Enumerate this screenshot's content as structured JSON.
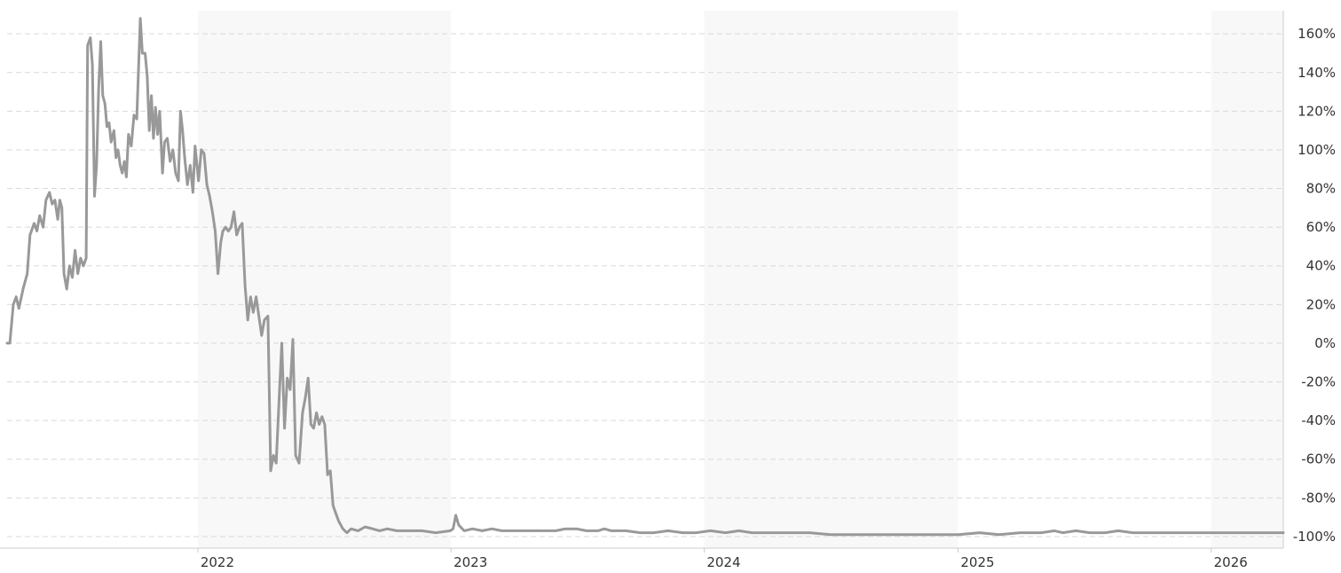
{
  "chart_data": {
    "type": "line",
    "title": "",
    "xlabel": "",
    "ylabel": "",
    "x_tick_labels": [
      "2022",
      "2023",
      "2024",
      "2025",
      "2026"
    ],
    "y_tick_labels": [
      "160%",
      "140%",
      "120%",
      "100%",
      "80%",
      "60%",
      "40%",
      "20%",
      "0%",
      "-20%",
      "-40%",
      "-60%",
      "-80%",
      "-100%"
    ],
    "y_ticks": [
      160,
      140,
      120,
      100,
      80,
      60,
      40,
      20,
      0,
      -20,
      -40,
      -60,
      -80,
      -100
    ],
    "ylim": [
      -106,
      172
    ],
    "xlim": [
      "2021-04-01",
      "2026-04-15"
    ],
    "grid": true,
    "shaded_year_bands": [
      [
        "2022-01-01",
        "2023-01-01"
      ],
      [
        "2024-01-01",
        "2025-01-01"
      ],
      [
        "2026-01-01",
        "2026-04-15"
      ]
    ],
    "colors": {
      "line": "#999999",
      "band": "#f8f8f8",
      "grid": "#d9d9d9",
      "axis": "#cccccc",
      "text": "#333333"
    },
    "series": [
      {
        "name": "",
        "points": [
          [
            "2021-04-01",
            0
          ],
          [
            "2021-04-05",
            0
          ],
          [
            "2021-04-10",
            20
          ],
          [
            "2021-04-14",
            24
          ],
          [
            "2021-04-18",
            18
          ],
          [
            "2021-04-24",
            28
          ],
          [
            "2021-04-30",
            36
          ],
          [
            "2021-05-04",
            56
          ],
          [
            "2021-05-10",
            62
          ],
          [
            "2021-05-14",
            58
          ],
          [
            "2021-05-18",
            66
          ],
          [
            "2021-05-23",
            60
          ],
          [
            "2021-05-27",
            74
          ],
          [
            "2021-06-01",
            78
          ],
          [
            "2021-06-05",
            72
          ],
          [
            "2021-06-09",
            74
          ],
          [
            "2021-06-13",
            64
          ],
          [
            "2021-06-16",
            74
          ],
          [
            "2021-06-19",
            70
          ],
          [
            "2021-06-22",
            36
          ],
          [
            "2021-06-26",
            28
          ],
          [
            "2021-06-30",
            40
          ],
          [
            "2021-07-04",
            34
          ],
          [
            "2021-07-08",
            48
          ],
          [
            "2021-07-12",
            36
          ],
          [
            "2021-07-16",
            44
          ],
          [
            "2021-07-20",
            40
          ],
          [
            "2021-07-24",
            44
          ],
          [
            "2021-07-26",
            154
          ],
          [
            "2021-07-30",
            158
          ],
          [
            "2021-08-02",
            144
          ],
          [
            "2021-08-05",
            76
          ],
          [
            "2021-08-08",
            92
          ],
          [
            "2021-08-11",
            132
          ],
          [
            "2021-08-14",
            156
          ],
          [
            "2021-08-17",
            128
          ],
          [
            "2021-08-20",
            124
          ],
          [
            "2021-08-23",
            112
          ],
          [
            "2021-08-26",
            114
          ],
          [
            "2021-08-29",
            104
          ],
          [
            "2021-09-02",
            110
          ],
          [
            "2021-09-05",
            96
          ],
          [
            "2021-09-08",
            100
          ],
          [
            "2021-09-11",
            92
          ],
          [
            "2021-09-14",
            88
          ],
          [
            "2021-09-17",
            94
          ],
          [
            "2021-09-20",
            86
          ],
          [
            "2021-09-23",
            108
          ],
          [
            "2021-09-27",
            102
          ],
          [
            "2021-10-01",
            118
          ],
          [
            "2021-10-05",
            116
          ],
          [
            "2021-10-10",
            168
          ],
          [
            "2021-10-13",
            150
          ],
          [
            "2021-10-17",
            150
          ],
          [
            "2021-10-20",
            138
          ],
          [
            "2021-10-23",
            110
          ],
          [
            "2021-10-26",
            128
          ],
          [
            "2021-10-29",
            106
          ],
          [
            "2021-11-01",
            122
          ],
          [
            "2021-11-04",
            108
          ],
          [
            "2021-11-07",
            120
          ],
          [
            "2021-11-11",
            88
          ],
          [
            "2021-11-14",
            104
          ],
          [
            "2021-11-18",
            106
          ],
          [
            "2021-11-22",
            94
          ],
          [
            "2021-11-26",
            100
          ],
          [
            "2021-11-30",
            88
          ],
          [
            "2021-12-04",
            84
          ],
          [
            "2021-12-07",
            120
          ],
          [
            "2021-12-10",
            110
          ],
          [
            "2021-12-13",
            96
          ],
          [
            "2021-12-17",
            82
          ],
          [
            "2021-12-21",
            92
          ],
          [
            "2021-12-25",
            78
          ],
          [
            "2021-12-28",
            102
          ],
          [
            "2022-01-02",
            84
          ],
          [
            "2022-01-06",
            100
          ],
          [
            "2022-01-10",
            98
          ],
          [
            "2022-01-14",
            82
          ],
          [
            "2022-01-18",
            76
          ],
          [
            "2022-01-22",
            68
          ],
          [
            "2022-01-26",
            58
          ],
          [
            "2022-01-30",
            36
          ],
          [
            "2022-02-03",
            52
          ],
          [
            "2022-02-06",
            58
          ],
          [
            "2022-02-10",
            60
          ],
          [
            "2022-02-14",
            58
          ],
          [
            "2022-02-18",
            60
          ],
          [
            "2022-02-22",
            68
          ],
          [
            "2022-02-26",
            56
          ],
          [
            "2022-03-02",
            60
          ],
          [
            "2022-03-06",
            62
          ],
          [
            "2022-03-10",
            30
          ],
          [
            "2022-03-14",
            12
          ],
          [
            "2022-03-18",
            24
          ],
          [
            "2022-03-22",
            16
          ],
          [
            "2022-03-26",
            24
          ],
          [
            "2022-03-30",
            14
          ],
          [
            "2022-04-03",
            4
          ],
          [
            "2022-04-07",
            12
          ],
          [
            "2022-04-12",
            14
          ],
          [
            "2022-04-16",
            -66
          ],
          [
            "2022-04-20",
            -58
          ],
          [
            "2022-04-24",
            -62
          ],
          [
            "2022-04-28",
            -30
          ],
          [
            "2022-05-02",
            0
          ],
          [
            "2022-05-06",
            -44
          ],
          [
            "2022-05-10",
            -18
          ],
          [
            "2022-05-14",
            -24
          ],
          [
            "2022-05-18",
            2
          ],
          [
            "2022-05-22",
            -58
          ],
          [
            "2022-05-27",
            -62
          ],
          [
            "2022-06-01",
            -36
          ],
          [
            "2022-06-05",
            -28
          ],
          [
            "2022-06-09",
            -18
          ],
          [
            "2022-06-13",
            -42
          ],
          [
            "2022-06-17",
            -44
          ],
          [
            "2022-06-21",
            -36
          ],
          [
            "2022-06-25",
            -42
          ],
          [
            "2022-06-29",
            -38
          ],
          [
            "2022-07-03",
            -42
          ],
          [
            "2022-07-07",
            -68
          ],
          [
            "2022-07-11",
            -66
          ],
          [
            "2022-07-15",
            -84
          ],
          [
            "2022-07-19",
            -88
          ],
          [
            "2022-07-23",
            -92
          ],
          [
            "2022-07-29",
            -96
          ],
          [
            "2022-08-04",
            -98
          ],
          [
            "2022-08-10",
            -96
          ],
          [
            "2022-08-20",
            -97
          ],
          [
            "2022-08-30",
            -95
          ],
          [
            "2022-09-10",
            -96
          ],
          [
            "2022-09-20",
            -97
          ],
          [
            "2022-10-01",
            -96
          ],
          [
            "2022-10-15",
            -97
          ],
          [
            "2022-11-01",
            -97
          ],
          [
            "2022-11-20",
            -97
          ],
          [
            "2022-12-10",
            -98
          ],
          [
            "2022-12-31",
            -97
          ],
          [
            "2023-01-04",
            -96
          ],
          [
            "2023-01-08",
            -89
          ],
          [
            "2023-01-12",
            -94
          ],
          [
            "2023-01-20",
            -97
          ],
          [
            "2023-02-01",
            -96
          ],
          [
            "2023-02-15",
            -97
          ],
          [
            "2023-03-01",
            -96
          ],
          [
            "2023-03-15",
            -97
          ],
          [
            "2023-04-01",
            -97
          ],
          [
            "2023-04-20",
            -97
          ],
          [
            "2023-05-10",
            -97
          ],
          [
            "2023-06-01",
            -97
          ],
          [
            "2023-06-15",
            -96
          ],
          [
            "2023-07-01",
            -96
          ],
          [
            "2023-07-15",
            -97
          ],
          [
            "2023-08-01",
            -97
          ],
          [
            "2023-08-10",
            -96
          ],
          [
            "2023-08-20",
            -97
          ],
          [
            "2023-09-10",
            -97
          ],
          [
            "2023-10-01",
            -98
          ],
          [
            "2023-10-20",
            -98
          ],
          [
            "2023-11-10",
            -97
          ],
          [
            "2023-12-01",
            -98
          ],
          [
            "2023-12-20",
            -98
          ],
          [
            "2024-01-10",
            -97
          ],
          [
            "2024-02-01",
            -98
          ],
          [
            "2024-02-20",
            -97
          ],
          [
            "2024-03-10",
            -98
          ],
          [
            "2024-04-01",
            -98
          ],
          [
            "2024-05-01",
            -98
          ],
          [
            "2024-06-01",
            -98
          ],
          [
            "2024-07-01",
            -99
          ],
          [
            "2024-08-01",
            -99
          ],
          [
            "2024-09-01",
            -99
          ],
          [
            "2024-10-01",
            -99
          ],
          [
            "2024-11-01",
            -99
          ],
          [
            "2024-12-01",
            -99
          ],
          [
            "2025-01-01",
            -99
          ],
          [
            "2025-02-01",
            -98
          ],
          [
            "2025-03-01",
            -99
          ],
          [
            "2025-04-01",
            -98
          ],
          [
            "2025-05-01",
            -98
          ],
          [
            "2025-05-20",
            -97
          ],
          [
            "2025-06-01",
            -98
          ],
          [
            "2025-06-20",
            -97
          ],
          [
            "2025-07-10",
            -98
          ],
          [
            "2025-08-01",
            -98
          ],
          [
            "2025-08-20",
            -97
          ],
          [
            "2025-09-10",
            -98
          ],
          [
            "2025-10-01",
            -98
          ],
          [
            "2025-10-20",
            -98
          ],
          [
            "2025-11-10",
            -98
          ],
          [
            "2025-12-01",
            -98
          ],
          [
            "2025-12-20",
            -98
          ],
          [
            "2026-01-10",
            -98
          ],
          [
            "2026-02-01",
            -98
          ],
          [
            "2026-02-20",
            -98
          ],
          [
            "2026-03-10",
            -98
          ],
          [
            "2026-04-01",
            -98
          ],
          [
            "2026-04-15",
            -98
          ]
        ]
      }
    ]
  }
}
